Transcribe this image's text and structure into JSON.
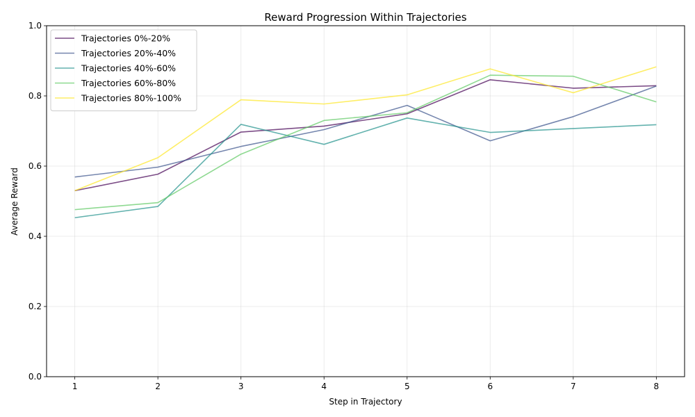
{
  "chart_data": {
    "type": "line",
    "title": "Reward Progression Within Trajectories",
    "xlabel": "Step in Trajectory",
    "ylabel": "Average Reward",
    "xlim": [
      0.66,
      8.34
    ],
    "ylim": [
      0,
      1.0
    ],
    "x": [
      1,
      2,
      3,
      4,
      5,
      6,
      7,
      8
    ],
    "x_ticks": [
      "1",
      "2",
      "3",
      "4",
      "5",
      "6",
      "7",
      "8"
    ],
    "y_ticks": [
      "0.0",
      "0.2",
      "0.4",
      "0.6",
      "0.8",
      "1.0"
    ],
    "grid": true,
    "legend_position": "upper-left",
    "series": [
      {
        "name": "Trajectories 0%-20%",
        "color": "#440154",
        "values": [
          0.53,
          0.577,
          0.697,
          0.714,
          0.749,
          0.846,
          0.822,
          0.829
        ]
      },
      {
        "name": "Trajectories 20%-40%",
        "color": "#3b528b",
        "values": [
          0.569,
          0.597,
          0.656,
          0.704,
          0.773,
          0.672,
          0.741,
          0.828
        ]
      },
      {
        "name": "Trajectories 40%-60%",
        "color": "#21918c",
        "values": [
          0.453,
          0.485,
          0.719,
          0.662,
          0.737,
          0.696,
          0.707,
          0.718
        ]
      },
      {
        "name": "Trajectories 60%-80%",
        "color": "#5ec962",
        "values": [
          0.476,
          0.496,
          0.634,
          0.73,
          0.752,
          0.859,
          0.856,
          0.783
        ]
      },
      {
        "name": "Trajectories 80%-100%",
        "color": "#fde725",
        "values": [
          0.53,
          0.624,
          0.789,
          0.777,
          0.803,
          0.877,
          0.809,
          0.883
        ]
      }
    ]
  }
}
